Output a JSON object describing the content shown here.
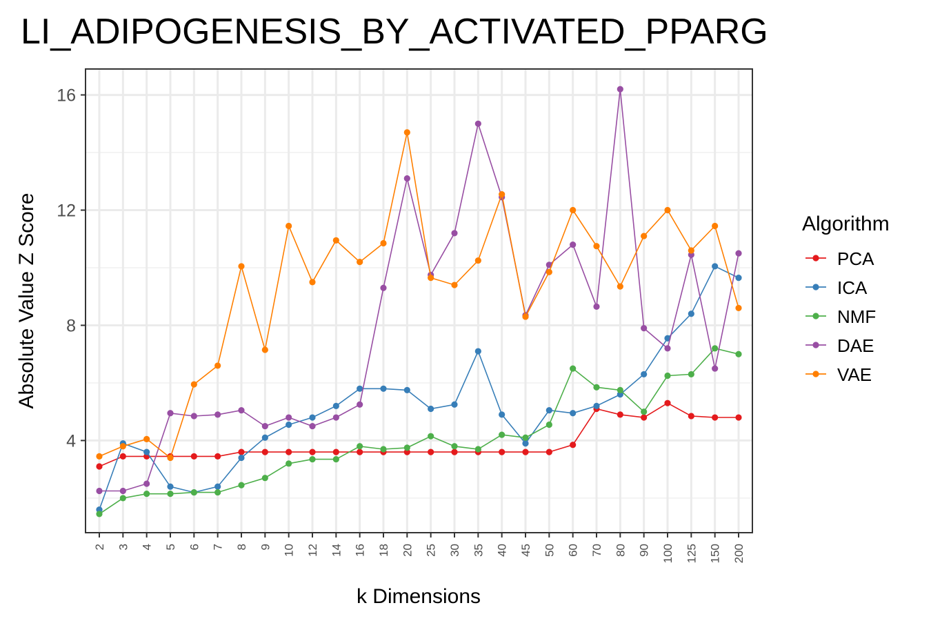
{
  "chart_data": {
    "type": "line",
    "title": "LI_ADIPOGENESIS_BY_ACTIVATED_PPARG",
    "xlabel": "k Dimensions",
    "ylabel": "Absolute Value Z Score",
    "categories": [
      "2",
      "3",
      "4",
      "5",
      "6",
      "7",
      "8",
      "9",
      "10",
      "12",
      "14",
      "16",
      "18",
      "20",
      "25",
      "30",
      "35",
      "40",
      "45",
      "50",
      "60",
      "70",
      "80",
      "90",
      "100",
      "125",
      "150",
      "200"
    ],
    "ylim": [
      0.8,
      16.9
    ],
    "yticks": [
      4,
      8,
      12,
      16
    ],
    "grid": true,
    "legend": {
      "title": "Algorithm",
      "position": "right"
    },
    "series": [
      {
        "name": "PCA",
        "color": "#E41A1C",
        "values": [
          3.1,
          3.45,
          3.45,
          3.45,
          3.45,
          3.45,
          3.6,
          3.6,
          3.6,
          3.6,
          3.6,
          3.6,
          3.6,
          3.6,
          3.6,
          3.6,
          3.6,
          3.6,
          3.6,
          3.6,
          3.85,
          5.1,
          4.9,
          4.8,
          5.3,
          4.85,
          4.8,
          4.8
        ]
      },
      {
        "name": "ICA",
        "color": "#377EB8",
        "values": [
          1.6,
          3.9,
          3.6,
          2.4,
          2.2,
          2.4,
          3.4,
          4.1,
          4.55,
          4.8,
          5.2,
          5.8,
          5.8,
          5.75,
          5.1,
          5.25,
          7.1,
          4.9,
          3.9,
          5.05,
          4.95,
          5.2,
          5.6,
          6.3,
          7.55,
          8.4,
          10.05,
          9.65
        ]
      },
      {
        "name": "NMF",
        "color": "#4DAF4A",
        "values": [
          1.45,
          2.0,
          2.15,
          2.15,
          2.2,
          2.2,
          2.45,
          2.7,
          3.2,
          3.35,
          3.35,
          3.8,
          3.7,
          3.75,
          4.15,
          3.8,
          3.7,
          4.2,
          4.1,
          4.55,
          6.5,
          5.85,
          5.75,
          5.0,
          6.25,
          6.3,
          7.2,
          7.0
        ]
      },
      {
        "name": "DAE",
        "color": "#984EA3",
        "values": [
          2.25,
          2.25,
          2.5,
          4.95,
          4.85,
          4.9,
          5.05,
          4.5,
          4.8,
          4.5,
          4.8,
          5.25,
          9.3,
          13.1,
          9.75,
          11.2,
          15.0,
          12.45,
          8.35,
          10.1,
          10.8,
          8.65,
          16.2,
          7.9,
          7.2,
          10.45,
          6.5,
          10.5
        ]
      },
      {
        "name": "VAE",
        "color": "#FF7F00",
        "values": [
          3.45,
          3.8,
          4.05,
          3.4,
          5.95,
          6.6,
          10.05,
          7.15,
          11.45,
          9.5,
          10.95,
          10.2,
          10.85,
          14.7,
          9.65,
          9.4,
          10.25,
          12.55,
          8.3,
          9.85,
          12.0,
          10.75,
          9.35,
          11.1,
          12.0,
          10.6,
          11.45,
          8.6
        ]
      }
    ]
  }
}
